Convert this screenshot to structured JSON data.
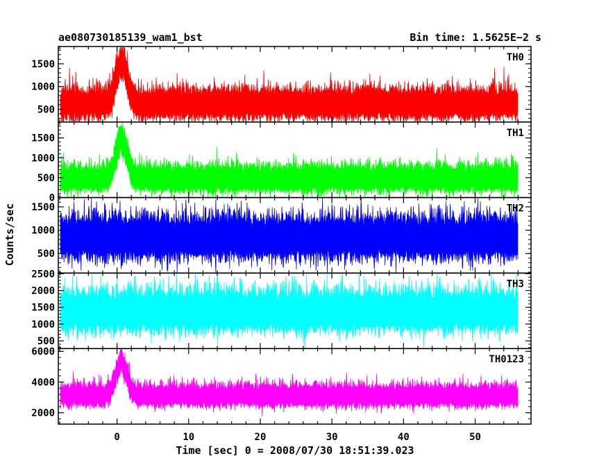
{
  "header": {
    "left_title": "ae080730185139_wam1_bst",
    "right_title": "Bin time: 1.5625E−2 s"
  },
  "chart_data": {
    "type": "line",
    "title": "ae080730185139_wam1_bst",
    "bin_time": "1.5625E−2 s",
    "xlabel": "Time [sec] 0 = 2008/07/30 18:51:39.023",
    "ylabel": "Counts/sec",
    "xlim": [
      -8.2,
      57.8
    ],
    "x_ticks": [
      0,
      10,
      20,
      30,
      40,
      50
    ],
    "x_tick_labels": [
      "0",
      "10",
      "20",
      "30",
      "40",
      "50"
    ],
    "data_range_x": [
      -7.9,
      56.0
    ],
    "panels": [
      {
        "name": "TH0",
        "color": "#ff0000",
        "ylim": [
          220,
          1880
        ],
        "y_ticks": [
          500,
          1000,
          1500
        ],
        "y_tick_labels": [
          "500",
          "1000",
          "1500"
        ],
        "baseline": 620,
        "noise_amplitude": 330,
        "burst": {
          "peak_time": 0.6,
          "peak_value": 1880,
          "approx_width_sec": 2.5
        }
      },
      {
        "name": "TH1",
        "color": "#00ff00",
        "ylim": [
          0,
          1900
        ],
        "y_ticks": [
          0,
          500,
          1000,
          1500
        ],
        "y_tick_labels": [
          "0",
          "500",
          "1000",
          "1500"
        ],
        "baseline": 470,
        "noise_amplitude": 330,
        "burst": {
          "peak_time": 0.6,
          "peak_value": 1800,
          "approx_width_sec": 2.5
        }
      },
      {
        "name": "TH2",
        "color": "#0000ff",
        "ylim": [
          80,
          1700
        ],
        "y_ticks": [
          500,
          1000,
          1500
        ],
        "y_tick_labels": [
          "500",
          "1000",
          "1500"
        ],
        "baseline": 830,
        "noise_amplitude": 450,
        "burst": null
      },
      {
        "name": "TH3",
        "color": "#00ffff",
        "ylim": [
          270,
          2520
        ],
        "y_ticks": [
          500,
          1000,
          1500,
          2000,
          2500
        ],
        "y_tick_labels": [
          "500",
          "1000",
          "1500",
          "2000",
          "2500"
        ],
        "baseline": 1380,
        "noise_amplitude": 600,
        "burst": null
      },
      {
        "name": "TH0123",
        "color": "#ff00ff",
        "ylim": [
          1260,
          6180
        ],
        "y_ticks": [
          2000,
          4000,
          6000
        ],
        "y_tick_labels": [
          "2000",
          "4000",
          "6000"
        ],
        "baseline": 3100,
        "noise_amplitude": 700,
        "burst": {
          "peak_time": 0.6,
          "peak_value": 6050,
          "approx_width_sec": 2.5
        }
      }
    ]
  }
}
